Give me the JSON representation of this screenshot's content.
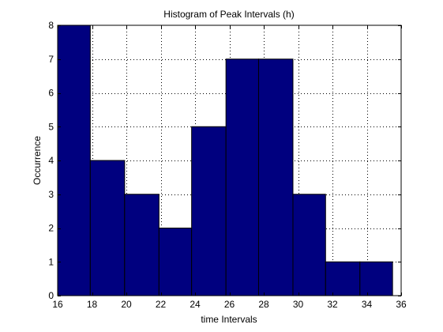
{
  "chart_data": {
    "type": "bar",
    "title": "Histogram of Peak Intervals (h)",
    "xlabel": "time Intervals",
    "ylabel": "Occurrence",
    "xlim": [
      16,
      36
    ],
    "ylim": [
      0,
      8
    ],
    "xticks": [
      16,
      18,
      20,
      22,
      24,
      26,
      28,
      30,
      32,
      34,
      36
    ],
    "yticks": [
      0,
      1,
      2,
      3,
      4,
      5,
      6,
      7,
      8
    ],
    "grid": true,
    "bins": [
      {
        "x_start": 16.0,
        "x_end": 17.9,
        "value": 8
      },
      {
        "x_start": 17.9,
        "x_end": 19.9,
        "value": 4
      },
      {
        "x_start": 19.9,
        "x_end": 21.9,
        "value": 3
      },
      {
        "x_start": 21.9,
        "x_end": 23.8,
        "value": 2
      },
      {
        "x_start": 23.8,
        "x_end": 25.8,
        "value": 5
      },
      {
        "x_start": 25.8,
        "x_end": 27.7,
        "value": 7
      },
      {
        "x_start": 27.7,
        "x_end": 29.7,
        "value": 7
      },
      {
        "x_start": 29.7,
        "x_end": 31.6,
        "value": 3
      },
      {
        "x_start": 31.6,
        "x_end": 33.6,
        "value": 1
      },
      {
        "x_start": 33.6,
        "x_end": 35.5,
        "value": 1
      }
    ],
    "bar_color": "#00007f",
    "edge_color": "#000000"
  }
}
